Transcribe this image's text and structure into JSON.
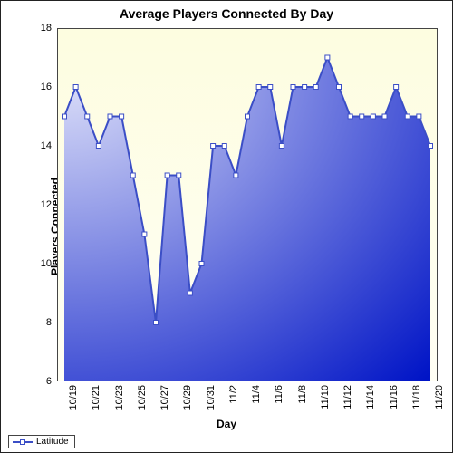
{
  "chart": {
    "type": "area-line",
    "title": "Average Players Connected By Day",
    "title_fontsize": 14,
    "xlabel": "Day",
    "ylabel": "Players Connected",
    "label_fontsize": 12,
    "tick_fontsize": 11,
    "background_gradient": {
      "from": "#fdfde0",
      "to": "#fffef4"
    },
    "x_categories": [
      "10/19",
      "10/20",
      "10/21",
      "10/22",
      "10/23",
      "10/24",
      "10/25",
      "10/26",
      "10/27",
      "10/28",
      "10/29",
      "10/30",
      "10/31",
      "11/1",
      "11/2",
      "11/3",
      "11/4",
      "11/5",
      "11/6",
      "11/7",
      "11/8",
      "11/9",
      "11/10",
      "11/11",
      "11/12",
      "11/13",
      "11/14",
      "11/15",
      "11/16",
      "11/17",
      "11/18",
      "11/19",
      "11/20"
    ],
    "x_tick_labels": [
      "10/19",
      "10/21",
      "10/23",
      "10/25",
      "10/27",
      "10/29",
      "10/31",
      "11/2",
      "11/4",
      "11/6",
      "11/8",
      "11/10",
      "11/12",
      "11/14",
      "11/16",
      "11/18",
      "11/20"
    ],
    "y": {
      "min": 6,
      "max": 18,
      "tick_step": 2,
      "tick_labels": [
        "6",
        "8",
        "10",
        "12",
        "14",
        "16",
        "18"
      ]
    },
    "series": [
      {
        "name": "Latitude",
        "line_color": "#3b4ec6",
        "line_width": 2,
        "marker": {
          "shape": "square",
          "size": 5,
          "fill": "#ffffff",
          "stroke": "#3b4ec6"
        },
        "area_gradient": {
          "from": "#e6e8fb",
          "to": "#0014c6"
        },
        "values": [
          15,
          16,
          15,
          14,
          15,
          15,
          13,
          11,
          8,
          13,
          13,
          9,
          10,
          14,
          14,
          13,
          15,
          16,
          16,
          14,
          16,
          16,
          16,
          17,
          16,
          15,
          15,
          15,
          15,
          16,
          15,
          15,
          14
        ]
      }
    ],
    "plot_border_color": "#444444",
    "legend": {
      "position": "bottom-left"
    }
  }
}
